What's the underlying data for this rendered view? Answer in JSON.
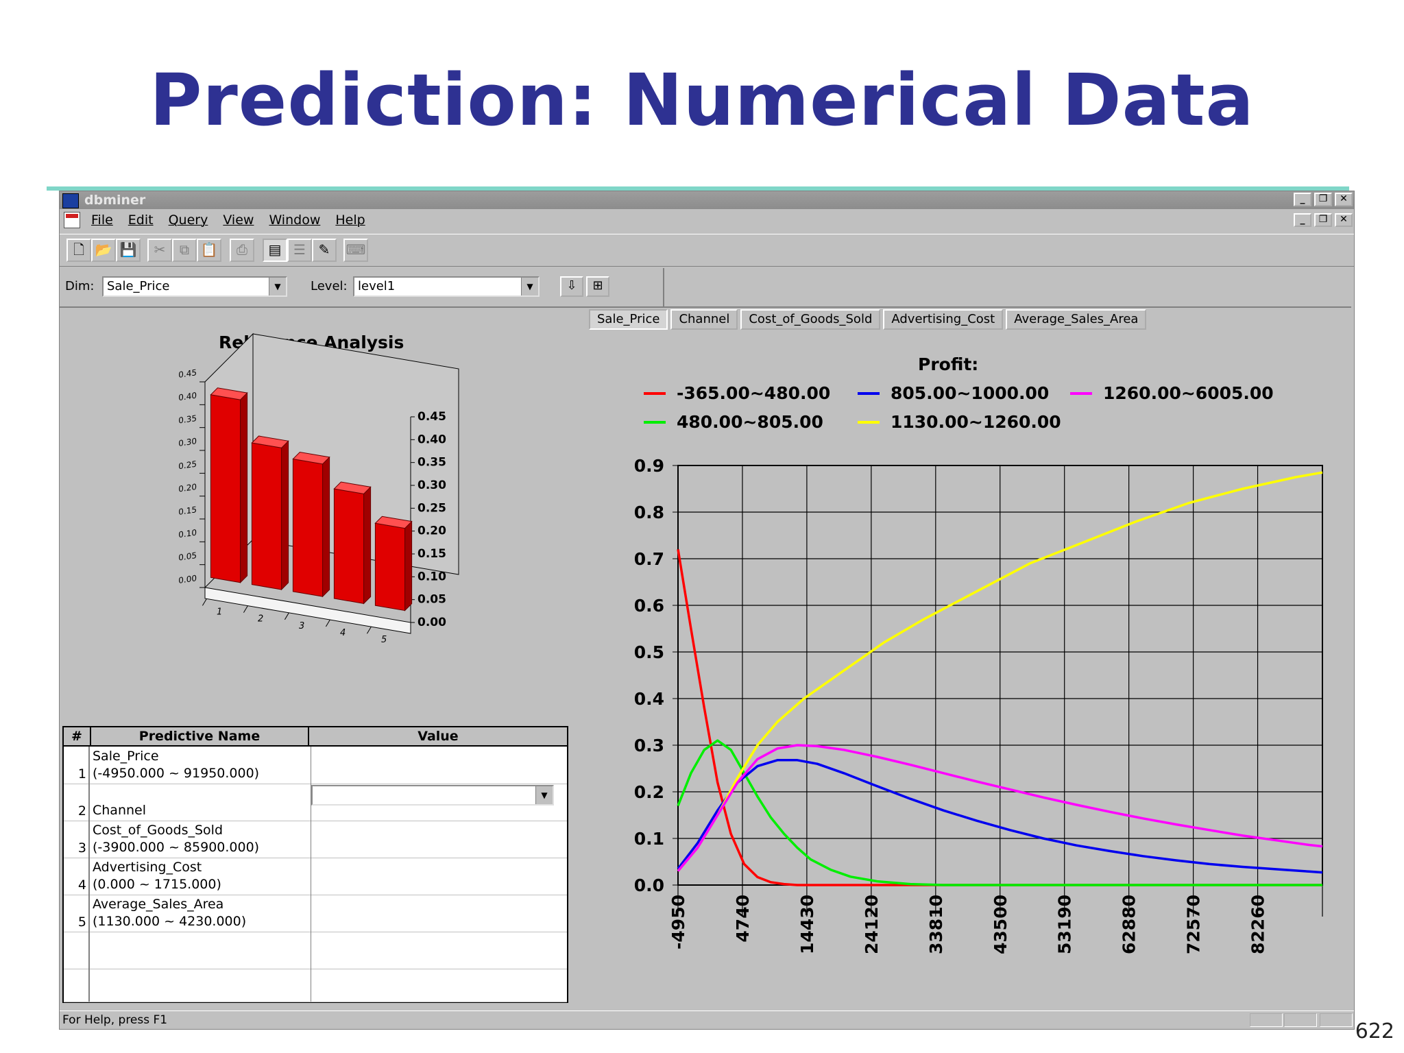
{
  "slide": {
    "title": "Prediction: Numerical Data",
    "page_number": "622"
  },
  "window": {
    "title": "dbminer",
    "menu": [
      "File",
      "Edit",
      "Query",
      "View",
      "Window",
      "Help"
    ],
    "toolbar_icons": [
      "new-icon",
      "open-icon",
      "save-icon",
      "cut-icon",
      "copy-icon",
      "paste-icon",
      "print-icon",
      "view-table-icon",
      "view-list-icon",
      "wizard-icon",
      "keyboard-icon"
    ]
  },
  "dimbar": {
    "dim_label": "Dim:",
    "dim_value": "Sale_Price",
    "level_label": "Level:",
    "level_value": "level1"
  },
  "relevance": {
    "title": "Relevance Analysis",
    "chart_data": {
      "type": "bar",
      "categories": [
        "1",
        "2",
        "3",
        "4",
        "5"
      ],
      "values": [
        0.4,
        0.31,
        0.29,
        0.24,
        0.18
      ],
      "ylim": [
        0,
        0.45
      ],
      "yticks": [
        "0.00",
        "0.05",
        "0.10",
        "0.15",
        "0.20",
        "0.25",
        "0.30",
        "0.35",
        "0.40",
        "0.45"
      ],
      "color": "#e00000"
    }
  },
  "grid": {
    "headers": [
      "#",
      "Predictive Name",
      "Value"
    ],
    "rows": [
      {
        "num": "1",
        "name": "Sale_Price",
        "range": "(-4950.000 ~ 91950.000)"
      },
      {
        "num": "2",
        "name": "Channel",
        "range": ""
      },
      {
        "num": "3",
        "name": "Cost_of_Goods_Sold",
        "range": "(-3900.000 ~ 85900.000)"
      },
      {
        "num": "4",
        "name": "Advertising_Cost",
        "range": "(0.000 ~ 1715.000)"
      },
      {
        "num": "5",
        "name": "Average_Sales_Area",
        "range": "(1130.000 ~ 4230.000)"
      }
    ]
  },
  "tabs": [
    "Sale_Price",
    "Channel",
    "Cost_of_Goods_Sold",
    "Advertising_Cost",
    "Average_Sales_Area"
  ],
  "profit": {
    "title": "Profit:",
    "chart_data": {
      "type": "line",
      "grid": true,
      "x_ticks": [
        "-4950",
        "4740",
        "14430",
        "24120",
        "33810",
        "43500",
        "53190",
        "62880",
        "72570",
        "82260"
      ],
      "xlim": [
        -4950,
        92000
      ],
      "ylim": [
        0,
        0.9
      ],
      "y_ticks": [
        "0.0",
        "0.1",
        "0.2",
        "0.3",
        "0.4",
        "0.5",
        "0.6",
        "0.7",
        "0.8",
        "0.9"
      ],
      "series": [
        {
          "name": "-365.00~480.00",
          "color": "#ff0000",
          "x": [
            -4950,
            -3000,
            -1000,
            1000,
            3000,
            5000,
            7000,
            9000,
            11000,
            13000,
            92000
          ],
          "y": [
            0.72,
            0.55,
            0.38,
            0.22,
            0.11,
            0.045,
            0.017,
            0.006,
            0.002,
            0.0,
            0.0
          ]
        },
        {
          "name": "480.00~805.00",
          "color": "#00ee00",
          "x": [
            -4950,
            -3000,
            -1000,
            1000,
            3000,
            5000,
            7000,
            9000,
            11000,
            13000,
            15000,
            18000,
            21000,
            25000,
            30000,
            35000,
            92000
          ],
          "y": [
            0.17,
            0.24,
            0.29,
            0.31,
            0.29,
            0.24,
            0.19,
            0.145,
            0.11,
            0.08,
            0.055,
            0.033,
            0.018,
            0.008,
            0.002,
            0.0,
            0.0
          ]
        },
        {
          "name": "805.00~1000.00",
          "color": "#0000ee",
          "x": [
            -4950,
            -2000,
            1000,
            4000,
            7000,
            10000,
            13000,
            16000,
            20000,
            25000,
            30000,
            35000,
            40000,
            45000,
            50000,
            55000,
            60000,
            65000,
            70000,
            75000,
            80000,
            85000,
            90000,
            92000
          ],
          "y": [
            0.035,
            0.09,
            0.16,
            0.22,
            0.255,
            0.268,
            0.268,
            0.26,
            0.24,
            0.212,
            0.185,
            0.16,
            0.138,
            0.118,
            0.1,
            0.085,
            0.073,
            0.062,
            0.053,
            0.045,
            0.039,
            0.034,
            0.029,
            0.027
          ]
        },
        {
          "name": "1130.00~1260.00",
          "color": "#ffff00",
          "x": [
            -4950,
            -2000,
            1000,
            4000,
            7000,
            10000,
            14000,
            20000,
            26000,
            32000,
            40000,
            48000,
            56000,
            64000,
            72000,
            80000,
            88000,
            92000
          ],
          "y": [
            0.03,
            0.08,
            0.15,
            0.23,
            0.3,
            0.35,
            0.4,
            0.46,
            0.52,
            0.57,
            0.63,
            0.69,
            0.735,
            0.78,
            0.82,
            0.85,
            0.875,
            0.885
          ]
        },
        {
          "name": "1260.00~6005.00",
          "color": "#ff00ff",
          "x": [
            -4950,
            -2000,
            1000,
            4000,
            7000,
            10000,
            13000,
            16000,
            20000,
            25000,
            30000,
            35000,
            40000,
            45000,
            50000,
            55000,
            60000,
            65000,
            70000,
            75000,
            80000,
            85000,
            90000,
            92000
          ],
          "y": [
            0.03,
            0.08,
            0.15,
            0.22,
            0.27,
            0.293,
            0.3,
            0.298,
            0.29,
            0.275,
            0.258,
            0.24,
            0.222,
            0.205,
            0.188,
            0.172,
            0.157,
            0.143,
            0.13,
            0.118,
            0.106,
            0.096,
            0.086,
            0.083
          ]
        }
      ]
    }
  },
  "status": {
    "text": "For Help, press F1"
  }
}
